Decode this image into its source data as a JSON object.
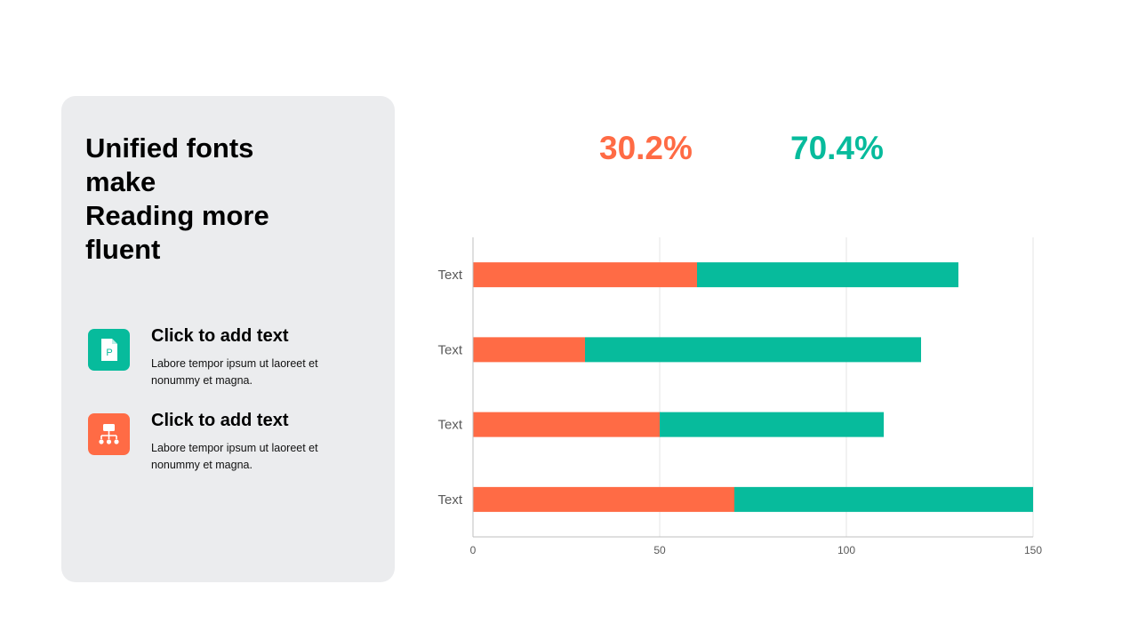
{
  "left_panel": {
    "headline": "Unified fonts\nmake\nReading more\nfluent",
    "items": [
      {
        "icon": "document-p-icon",
        "title": "Click to add text",
        "body": "Labore tempor ipsum  ut laoreet et nonummy  et magna.",
        "color": "#07bb9c"
      },
      {
        "icon": "org-chart-icon",
        "title": "Click to add text",
        "body": "Labore tempor ipsum  ut laoreet et nonummy  et magna.",
        "color": "#ff6b45"
      }
    ]
  },
  "stats": [
    {
      "value": "30.2%",
      "color": "#ff6b45"
    },
    {
      "value": "70.4%",
      "color": "#07bb9c"
    }
  ],
  "colors": {
    "orange": "#ff6b45",
    "green": "#07bb9c",
    "panel": "#ebecee",
    "grid": "#e6e6e6",
    "axis": "#bfbfbf"
  },
  "chart_data": {
    "type": "bar",
    "orientation": "horizontal",
    "stacked": true,
    "categories": [
      "Text",
      "Text",
      "Text",
      "Text"
    ],
    "series": [
      {
        "values": [
          60,
          30,
          50,
          70
        ],
        "color": "#ff6b45"
      },
      {
        "values": [
          70,
          90,
          60,
          80
        ],
        "color": "#07bb9c"
      }
    ],
    "xlim": [
      0,
      150
    ],
    "xticks": [
      0,
      50,
      100,
      150
    ],
    "grid": true,
    "legend": "none"
  }
}
